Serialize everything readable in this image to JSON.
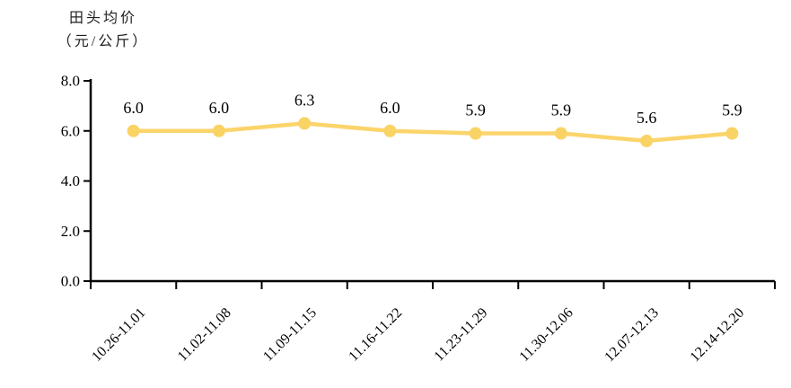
{
  "chart_data": {
    "type": "line",
    "title": "田头均价（元/公斤）",
    "title_lines": [
      "田头均价",
      "（元/公斤）"
    ],
    "categories": [
      "10.26-11.01",
      "11.02-11.08",
      "11.09-11.15",
      "11.16-11.22",
      "11.23-11.29",
      "11.30-12.06",
      "12.07-12.13",
      "12.14-12.20"
    ],
    "values": [
      6.0,
      6.0,
      6.3,
      6.0,
      5.9,
      5.9,
      5.6,
      5.9
    ],
    "data_labels": [
      "6.0",
      "6.0",
      "6.3",
      "6.0",
      "5.9",
      "5.9",
      "5.6",
      "5.9"
    ],
    "xlabel": "",
    "ylabel": "田头均价（元/公斤）",
    "ylim": [
      0.0,
      8.0
    ],
    "y_ticks": [
      "0.0",
      "2.0",
      "4.0",
      "6.0",
      "8.0"
    ],
    "y_tick_step": 2.0,
    "grid": false,
    "legend": false,
    "line_color": "#FBD46B",
    "marker_color": "#FAD365",
    "axis_color": "#000000",
    "text_color": "#000000"
  }
}
